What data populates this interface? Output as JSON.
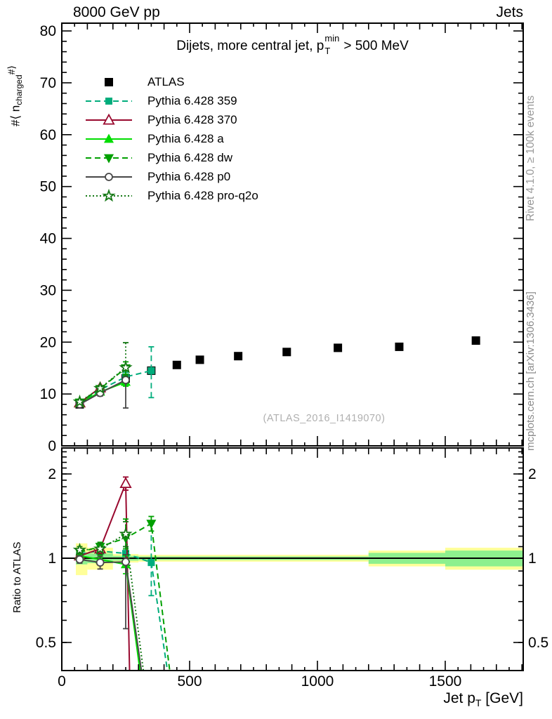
{
  "header": {
    "left": "8000 GeV pp",
    "right": "Jets"
  },
  "title": {
    "prefix": "Dijets, more central jet, p",
    "sup": "min",
    "sub": "T",
    "suffix": "> 500 MeV"
  },
  "axes": {
    "y_label": {
      "prefix": "#⟨ n",
      "sub": "charged",
      "suffix": "#⟩"
    },
    "ratio_label": "Ratio to ATLAS",
    "x_label": {
      "prefix": "Jet p",
      "sub": "T",
      "suffix": " [GeV]"
    }
  },
  "watermark": "(ATLAS_2016_I1419070)",
  "side_notes": {
    "top": "Rivet 4.1.0, ≥ 100k events",
    "bottom": "mcplots.cern.ch [arXiv:1306.3436]"
  },
  "colors": {
    "band_yellow": "#ffff99",
    "band_green": "#8ef08e",
    "frame": "#000000",
    "watermark_gray": "#b0b0b0"
  },
  "series": [
    {
      "label": "ATLAS",
      "color": "#000000",
      "line": "none",
      "marker": "square",
      "fill": "filled"
    },
    {
      "label": "Pythia 6.428 359",
      "color": "#00ad7c",
      "line": "dashed",
      "marker": "square",
      "fill": "filled"
    },
    {
      "label": "Pythia 6.428 370",
      "color": "#99082e",
      "line": "solid",
      "marker": "triangle-up",
      "fill": "open"
    },
    {
      "label": "Pythia 6.428 a",
      "color": "#00dd00",
      "line": "solid",
      "marker": "triangle-up",
      "fill": "filled"
    },
    {
      "label": "Pythia 6.428 dw",
      "color": "#00a000",
      "line": "dashed",
      "marker": "triangle-down",
      "fill": "filled"
    },
    {
      "label": "Pythia 6.428 p0",
      "color": "#474747",
      "line": "solid",
      "marker": "circle",
      "fill": "open"
    },
    {
      "label": "Pythia 6.428 pro-q2o",
      "color": "#147814",
      "line": "dotted",
      "marker": "star",
      "fill": "open"
    }
  ],
  "chart_data": [
    {
      "type": "line",
      "panel": "main",
      "ylabel": "#<n_charged#>",
      "xlim": [
        0,
        1805
      ],
      "ylim": [
        0,
        81.5
      ],
      "x_ticks": [
        0,
        500,
        1000,
        1500
      ],
      "y_ticks": [
        0,
        10,
        20,
        30,
        40,
        50,
        60,
        70,
        80
      ],
      "x_minor_step": 50,
      "y_minor_step": 2,
      "series_data": [
        {
          "x": [
            70,
            150,
            250,
            350,
            450,
            540,
            690,
            880,
            1080,
            1320,
            1620
          ],
          "y": [
            8.0,
            10.5,
            13.0,
            14.5,
            15.6,
            16.6,
            17.3,
            18.1,
            18.9,
            19.1,
            20.3
          ]
        },
        {
          "x": [
            70,
            150,
            250,
            350
          ],
          "y": [
            8.1,
            10.8,
            13.3,
            14.5
          ],
          "eyl": [
            0.2,
            0.3,
            0.9,
            5.2
          ],
          "eyh": [
            0.2,
            0.3,
            0.9,
            4.6
          ]
        },
        {
          "x": [
            70,
            150
          ],
          "y": [
            8.3,
            11.2
          ],
          "eyl": [
            0.2,
            0.4
          ],
          "eyh": [
            0.2,
            0.4
          ]
        },
        {
          "x": [
            70,
            150,
            250
          ],
          "y": [
            8.2,
            10.4,
            12.3
          ],
          "eyl": [
            0.2,
            0.3,
            0.8
          ],
          "eyh": [
            0.2,
            0.3,
            0.8
          ]
        },
        {
          "x": [
            70,
            150,
            250
          ],
          "y": [
            8.4,
            11.0,
            15.0
          ],
          "eyl": [
            0.2,
            0.3,
            1.2
          ],
          "eyh": [
            0.2,
            0.3,
            1.2
          ]
        },
        {
          "x": [
            70,
            150,
            250
          ],
          "y": [
            8.0,
            10.2,
            12.7
          ],
          "eyl": [
            0.2,
            0.6,
            5.4
          ],
          "eyh": [
            0.2,
            0.6,
            0.8
          ]
        },
        {
          "x": [
            70,
            150,
            250
          ],
          "y": [
            8.5,
            11.1,
            15.1
          ],
          "eyl": [
            0.3,
            0.5,
            1.6
          ],
          "eyh": [
            0.3,
            0.5,
            4.8
          ]
        }
      ]
    },
    {
      "type": "ratio",
      "panel": "ratio",
      "ylabel": "Ratio to ATLAS",
      "yscale": "log",
      "xlim": [
        0,
        1805
      ],
      "ylim": [
        0.397,
        2.49
      ],
      "y_ticks": [
        0.5,
        1,
        2
      ],
      "reference_line": 1,
      "bands": [
        {
          "x": [
            55,
            100
          ],
          "outer": [
            0.87,
            1.13
          ],
          "inner": [
            0.95,
            1.05
          ]
        },
        {
          "x": [
            100,
            200
          ],
          "outer": [
            0.91,
            1.09
          ],
          "inner": [
            0.96,
            1.04
          ]
        },
        {
          "x": [
            200,
            300
          ],
          "outer": [
            0.965,
            1.035
          ],
          "inner": [
            0.98,
            1.02
          ]
        },
        {
          "x": [
            300,
            1200
          ],
          "outer": [
            0.972,
            1.028
          ],
          "inner": [
            0.985,
            1.015
          ]
        },
        {
          "x": [
            1200,
            1500
          ],
          "outer": [
            0.935,
            1.065
          ],
          "inner": [
            0.955,
            1.045
          ]
        },
        {
          "x": [
            1500,
            1805
          ],
          "outer": [
            0.91,
            1.09
          ],
          "inner": [
            0.935,
            1.065
          ]
        }
      ],
      "series_data": [
        null,
        {
          "x": [
            70,
            150,
            250,
            350,
            420
          ],
          "y": [
            1.04,
            1.06,
            1.04,
            0.965,
            0.36
          ],
          "nm": 4,
          "eyl": [
            0.03,
            0.03,
            0.06,
            0.23,
            0
          ],
          "eyh": [
            0.03,
            0.03,
            0.06,
            0.36,
            0
          ]
        },
        {
          "x": [
            70,
            150,
            250,
            266
          ],
          "y": [
            1.02,
            1.08,
            1.85,
            0.36
          ],
          "nm": 3,
          "eyl": [
            0.03,
            0.04,
            0.1,
            0
          ],
          "eyh": [
            0.03,
            0.04,
            0.1,
            0
          ]
        },
        {
          "x": [
            70,
            150,
            250,
            312
          ],
          "y": [
            1.02,
            0.99,
            0.95,
            0.36
          ],
          "nm": 3,
          "eyl": [
            0.03,
            0.03,
            0.07,
            0
          ],
          "eyh": [
            0.03,
            0.03,
            0.07,
            0
          ]
        },
        {
          "x": [
            70,
            150,
            250,
            350,
            428
          ],
          "y": [
            1.05,
            1.1,
            1.18,
            1.33,
            0.36
          ],
          "nm": 4,
          "eyl": [
            0.03,
            0.04,
            0.1,
            0.08,
            0
          ],
          "eyh": [
            0.03,
            0.04,
            0.2,
            0.08,
            0
          ]
        },
        {
          "x": [
            70,
            150,
            250,
            318
          ],
          "y": [
            0.99,
            0.965,
            0.97,
            0.36
          ],
          "nm": 3,
          "eyl": [
            0.03,
            0.05,
            0.41,
            0
          ],
          "eyh": [
            0.03,
            0.05,
            0.06,
            0
          ]
        },
        {
          "x": [
            70,
            150,
            250,
            325
          ],
          "y": [
            1.07,
            1.08,
            1.22,
            0.36
          ],
          "nm": 3,
          "eyl": [
            0.03,
            0.05,
            0.12,
            0
          ],
          "eyh": [
            0.03,
            0.05,
            0.13,
            0
          ]
        }
      ]
    }
  ]
}
